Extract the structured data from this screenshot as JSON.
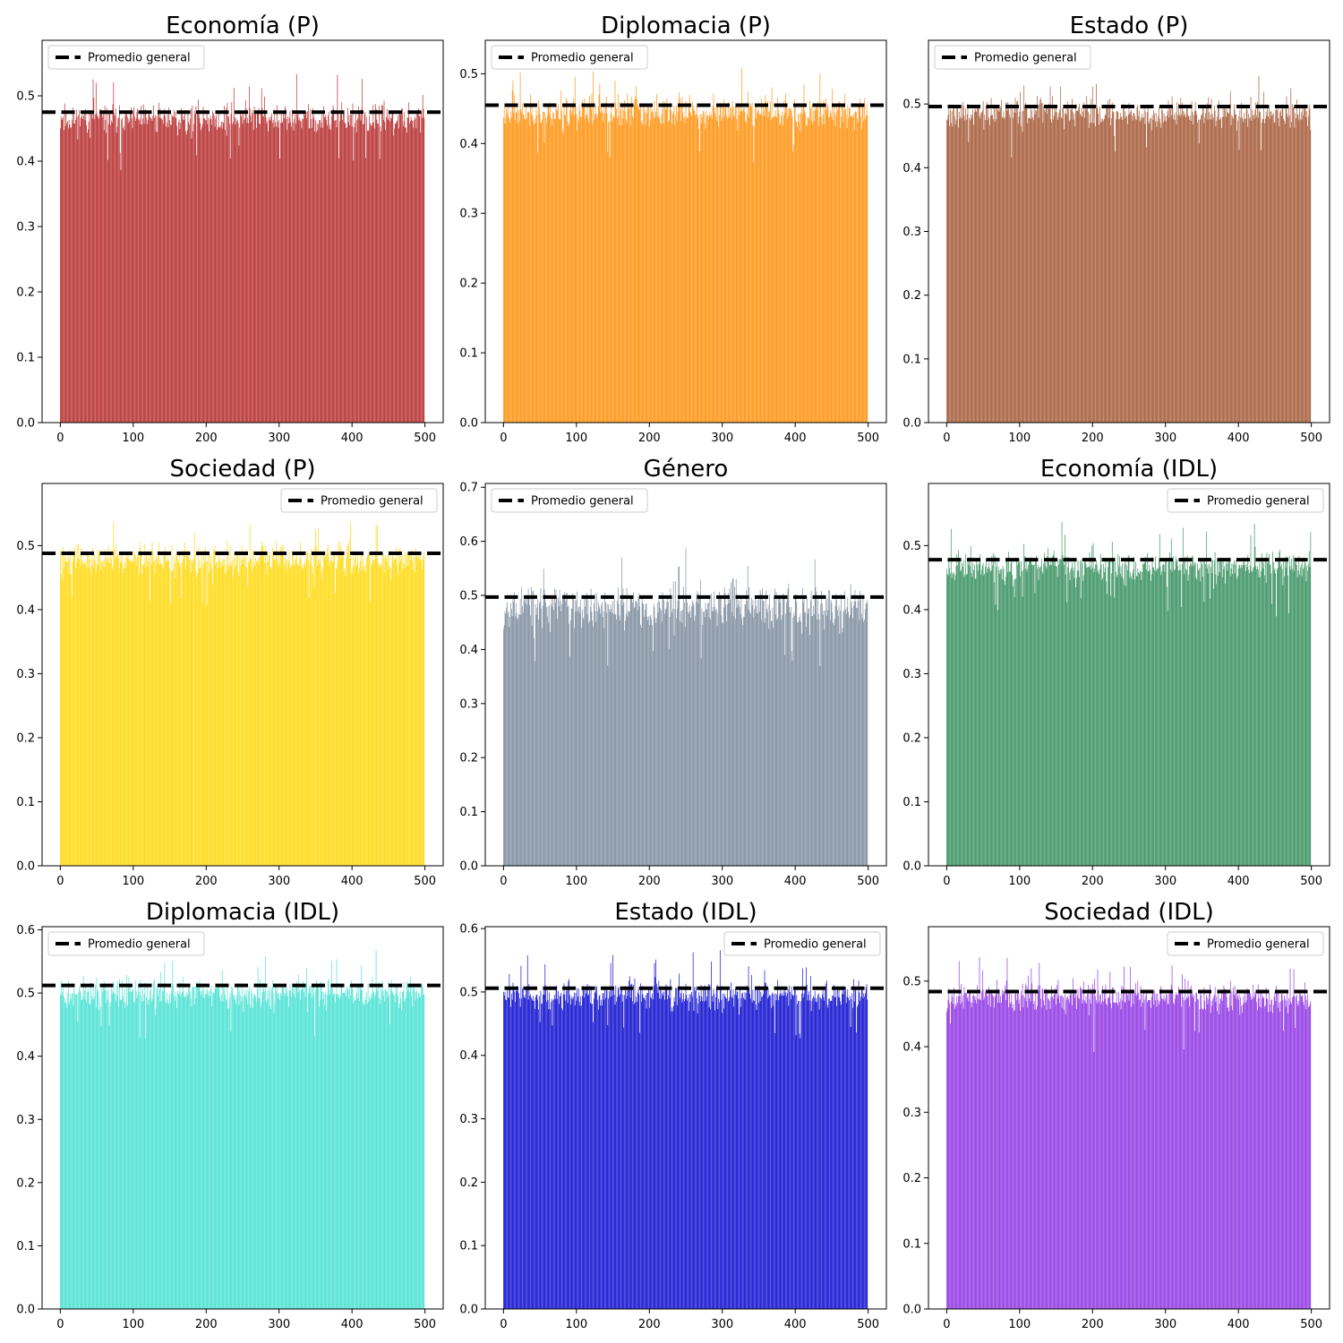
{
  "legend_label": "Promedio general",
  "chart_data": [
    {
      "type": "bar",
      "title": "Economía (P)",
      "color": "#b22222",
      "n_bars": 500,
      "base_value": 0.465,
      "spread": 0.035,
      "mean_line": 0.475,
      "xlim": [
        -25,
        525
      ],
      "ylim": [
        0,
        0.585
      ],
      "xticks": [
        0,
        100,
        200,
        300,
        400,
        500
      ],
      "yticks": [
        0.0,
        0.1,
        0.2,
        0.3,
        0.4,
        0.5
      ],
      "legend_position": "upper-left",
      "seed": 11
    },
    {
      "type": "bar",
      "title": "Diplomacia (P)",
      "color": "#ff8c00",
      "n_bars": 500,
      "base_value": 0.445,
      "spread": 0.035,
      "mean_line": 0.455,
      "xlim": [
        -25,
        525
      ],
      "ylim": [
        0,
        0.548
      ],
      "xticks": [
        0,
        100,
        200,
        300,
        400,
        500
      ],
      "yticks": [
        0.0,
        0.1,
        0.2,
        0.3,
        0.4,
        0.5
      ],
      "legend_position": "upper-left",
      "seed": 23
    },
    {
      "type": "bar",
      "title": "Estado (P)",
      "color": "#a0522d",
      "n_bars": 500,
      "base_value": 0.485,
      "spread": 0.035,
      "mean_line": 0.496,
      "xlim": [
        -25,
        525
      ],
      "ylim": [
        0,
        0.6
      ],
      "xticks": [
        0,
        100,
        200,
        300,
        400,
        500
      ],
      "yticks": [
        0.0,
        0.1,
        0.2,
        0.3,
        0.4,
        0.5
      ],
      "legend_position": "upper-left",
      "seed": 37
    },
    {
      "type": "bar",
      "title": "Sociedad (P)",
      "color": "#ffd700",
      "n_bars": 500,
      "base_value": 0.478,
      "spread": 0.035,
      "mean_line": 0.488,
      "xlim": [
        -25,
        525
      ],
      "ylim": [
        0,
        0.597
      ],
      "xticks": [
        0,
        100,
        200,
        300,
        400,
        500
      ],
      "yticks": [
        0.0,
        0.1,
        0.2,
        0.3,
        0.4,
        0.5
      ],
      "legend_position": "upper-right",
      "seed": 41
    },
    {
      "type": "bar",
      "title": "Género",
      "color": "#778899",
      "n_bars": 500,
      "base_value": 0.48,
      "spread": 0.06,
      "mean_line": 0.497,
      "xlim": [
        -25,
        525
      ],
      "ylim": [
        0,
        0.707
      ],
      "xticks": [
        0,
        100,
        200,
        300,
        400,
        500
      ],
      "yticks": [
        0.0,
        0.1,
        0.2,
        0.3,
        0.4,
        0.5,
        0.6,
        0.7
      ],
      "legend_position": "upper-left",
      "seed": 53
    },
    {
      "type": "bar",
      "title": "Economía (IDL)",
      "color": "#2e8b57",
      "n_bars": 500,
      "base_value": 0.468,
      "spread": 0.035,
      "mean_line": 0.478,
      "xlim": [
        -25,
        525
      ],
      "ylim": [
        0,
        0.597
      ],
      "xticks": [
        0,
        100,
        200,
        300,
        400,
        500
      ],
      "yticks": [
        0.0,
        0.1,
        0.2,
        0.3,
        0.4,
        0.5
      ],
      "legend_position": "upper-right",
      "seed": 67
    },
    {
      "type": "bar",
      "title": "Diplomacia (IDL)",
      "color": "#40e0d0",
      "n_bars": 500,
      "base_value": 0.5,
      "spread": 0.035,
      "mean_line": 0.512,
      "xlim": [
        -25,
        525
      ],
      "ylim": [
        0,
        0.605
      ],
      "xticks": [
        0,
        100,
        200,
        300,
        400,
        500
      ],
      "yticks": [
        0.0,
        0.1,
        0.2,
        0.3,
        0.4,
        0.5,
        0.6
      ],
      "legend_position": "upper-left",
      "seed": 71
    },
    {
      "type": "bar",
      "title": "Estado (IDL)",
      "color": "#0000cd",
      "n_bars": 500,
      "base_value": 0.495,
      "spread": 0.035,
      "mean_line": 0.506,
      "xlim": [
        -25,
        525
      ],
      "ylim": [
        0,
        0.603
      ],
      "xticks": [
        0,
        100,
        200,
        300,
        400,
        500
      ],
      "yticks": [
        0.0,
        0.1,
        0.2,
        0.3,
        0.4,
        0.5,
        0.6
      ],
      "legend_position": "upper-right",
      "seed": 83
    },
    {
      "type": "bar",
      "title": "Sociedad (IDL)",
      "color": "#8a2be2",
      "n_bars": 500,
      "base_value": 0.475,
      "spread": 0.035,
      "mean_line": 0.484,
      "xlim": [
        -25,
        525
      ],
      "ylim": [
        0,
        0.583
      ],
      "xticks": [
        0,
        100,
        200,
        300,
        400,
        500
      ],
      "yticks": [
        0.0,
        0.1,
        0.2,
        0.3,
        0.4,
        0.5
      ],
      "legend_position": "upper-right",
      "seed": 97
    }
  ]
}
